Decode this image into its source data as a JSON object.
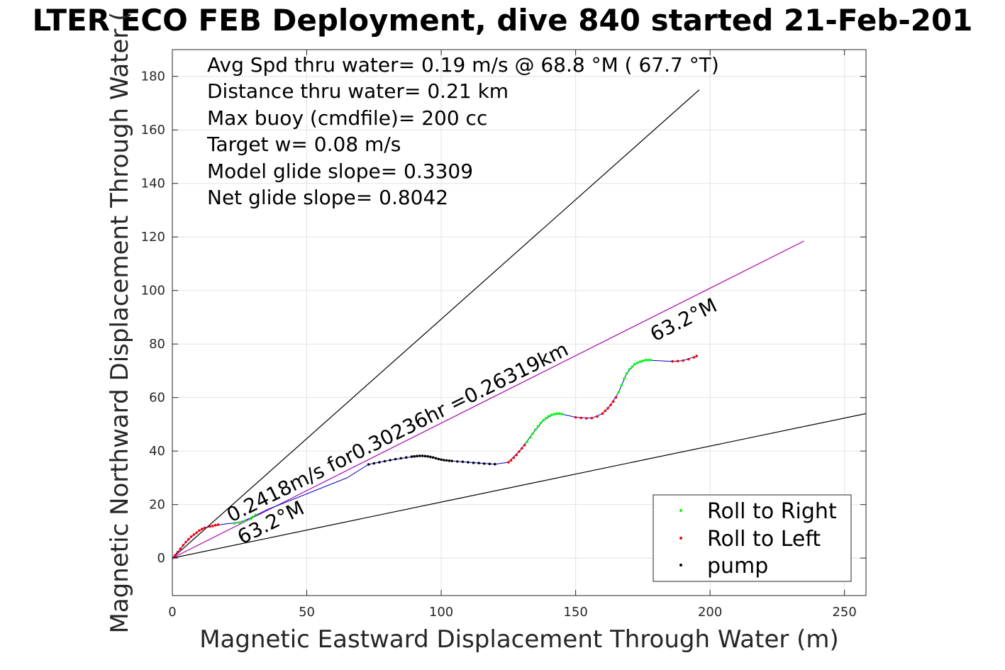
{
  "chart_data": {
    "type": "scatter",
    "title": "LTER ECO FEB Deployment, dive 840 started 21-Feb-201",
    "xlabel": "Magnetic Eastward Displacement Through Water (m)",
    "ylabel": "Magnetic Northward Displacement Through Water (",
    "xlim": [
      0,
      258
    ],
    "ylim": [
      -14,
      190
    ],
    "xticks": [
      0,
      50,
      100,
      150,
      200,
      250
    ],
    "yticks": [
      0,
      20,
      40,
      60,
      80,
      100,
      120,
      140,
      160,
      180
    ],
    "grid": true,
    "info_lines": [
      "Avg Spd thru water=  0.19 m/s @  68.8 °M ( 67.7 °T)",
      "Distance thru water=  0.21 km",
      "Max buoy (cmdfile)= 200 cc",
      "Target w= 0.08 m/s",
      "Model glide slope= 0.3309",
      "Net glide slope= 0.8042"
    ],
    "annotations": {
      "speed_label": "0.2418m/s for0.30236hr =0.26319km",
      "heading_start": "63.2°M",
      "heading_end": "63.2°M"
    },
    "legend": {
      "location": "bottom-right",
      "entries": [
        {
          "label": "Roll to Right",
          "color": "#00ff00"
        },
        {
          "label": "Roll to Left",
          "color": "#ff0000"
        },
        {
          "label": "pump",
          "color": "#000000"
        }
      ]
    },
    "reference_lines": [
      {
        "name": "steep",
        "from": [
          0,
          0
        ],
        "to": [
          196,
          175
        ],
        "color": "#000000"
      },
      {
        "name": "shallow",
        "from": [
          0,
          0
        ],
        "to": [
          258,
          54
        ],
        "color": "#000000"
      },
      {
        "name": "heading",
        "from": [
          0,
          0
        ],
        "to": [
          235,
          118.5
        ],
        "color": "#b000b0"
      }
    ],
    "track_color": "#0000cc",
    "series": [
      {
        "name": "Roll to Left",
        "color": "#ff0000",
        "points": [
          [
            0,
            0
          ],
          [
            1,
            1
          ],
          [
            2,
            2.2
          ],
          [
            3,
            3.5
          ],
          [
            4,
            4.8
          ],
          [
            5,
            6
          ],
          [
            6,
            7
          ],
          [
            7,
            8
          ],
          [
            8,
            8.8
          ],
          [
            9,
            9.5
          ],
          [
            10,
            10.3
          ],
          [
            11,
            10.9
          ],
          [
            12,
            11.3
          ],
          [
            14,
            11.8
          ],
          [
            15,
            12
          ],
          [
            16,
            12.3
          ],
          [
            17,
            12.5
          ],
          [
            125,
            35.8
          ],
          [
            126,
            36.5
          ],
          [
            127,
            37.5
          ],
          [
            128,
            38.5
          ],
          [
            129,
            39.8
          ],
          [
            130,
            41
          ],
          [
            131,
            42.2
          ],
          [
            150,
            52.6
          ],
          [
            152,
            52.4
          ],
          [
            154,
            52.2
          ],
          [
            156,
            52.3
          ],
          [
            158,
            52.9
          ],
          [
            160,
            54
          ],
          [
            161,
            55
          ],
          [
            162,
            56
          ],
          [
            163,
            57.2
          ],
          [
            164,
            58.5
          ],
          [
            165,
            60
          ],
          [
            186,
            73.5
          ],
          [
            188,
            73.6
          ],
          [
            190,
            73.8
          ],
          [
            192,
            74.3
          ],
          [
            194,
            75
          ],
          [
            195,
            75.5
          ]
        ]
      },
      {
        "name": "Roll to Right",
        "color": "#00ff00",
        "points": [
          [
            23,
            13
          ],
          [
            25,
            13.3
          ],
          [
            27,
            13.8
          ],
          [
            29,
            14.6
          ],
          [
            30,
            15.4
          ],
          [
            31,
            16.2
          ],
          [
            132,
            43.5
          ],
          [
            133,
            45
          ],
          [
            134,
            46.5
          ],
          [
            135,
            48
          ],
          [
            136,
            49.3
          ],
          [
            137,
            50.5
          ],
          [
            138,
            51.5
          ],
          [
            139,
            52.3
          ],
          [
            140,
            53
          ],
          [
            141,
            53.5
          ],
          [
            142,
            53.8
          ],
          [
            143,
            54
          ],
          [
            144,
            54
          ],
          [
            145,
            53.8
          ],
          [
            166,
            62
          ],
          [
            167,
            64.5
          ],
          [
            168,
            67
          ],
          [
            169,
            69
          ],
          [
            170,
            70.5
          ],
          [
            171,
            71.5
          ],
          [
            172,
            72.5
          ],
          [
            173,
            73
          ],
          [
            174,
            73.4
          ],
          [
            175,
            73.7
          ],
          [
            176,
            74
          ],
          [
            177,
            74
          ],
          [
            178,
            74
          ]
        ]
      },
      {
        "name": "pump",
        "color": "#000000",
        "points": [
          [
            73,
            35
          ],
          [
            75,
            35.4
          ],
          [
            77,
            35.8
          ],
          [
            79,
            36.2
          ],
          [
            81,
            36.6
          ],
          [
            83,
            37
          ],
          [
            85,
            37.3
          ],
          [
            87,
            37.6
          ],
          [
            89,
            37.9
          ],
          [
            90,
            38
          ],
          [
            91,
            38.1
          ],
          [
            92,
            38.2
          ],
          [
            93,
            38.2
          ],
          [
            94,
            38.1
          ],
          [
            95,
            38
          ],
          [
            96,
            37.8
          ],
          [
            97,
            37.6
          ],
          [
            98,
            37.3
          ],
          [
            99,
            37
          ],
          [
            100,
            36.8
          ],
          [
            101,
            36.6
          ],
          [
            102,
            36.5
          ],
          [
            103,
            36.4
          ],
          [
            104,
            36.3
          ],
          [
            106,
            36.1
          ],
          [
            108,
            36
          ],
          [
            110,
            35.8
          ],
          [
            112,
            35.6
          ],
          [
            114,
            35.5
          ],
          [
            116,
            35.3
          ],
          [
            118,
            35.2
          ],
          [
            120,
            35.1
          ]
        ]
      }
    ],
    "track_points": [
      [
        0,
        0
      ],
      [
        3,
        3.5
      ],
      [
        6,
        7
      ],
      [
        9,
        9.5
      ],
      [
        12,
        11.3
      ],
      [
        15,
        12
      ],
      [
        20,
        12.8
      ],
      [
        25,
        13.3
      ],
      [
        30,
        15.4
      ],
      [
        35,
        18
      ],
      [
        45,
        22
      ],
      [
        55,
        26
      ],
      [
        65,
        30
      ],
      [
        73,
        35
      ],
      [
        80,
        36.4
      ],
      [
        90,
        38
      ],
      [
        93,
        38.2
      ],
      [
        97,
        37.6
      ],
      [
        102,
        36.5
      ],
      [
        110,
        35.8
      ],
      [
        120,
        35.1
      ],
      [
        125,
        35.8
      ],
      [
        130,
        41
      ],
      [
        134,
        46.5
      ],
      [
        138,
        51.5
      ],
      [
        142,
        53.8
      ],
      [
        145,
        53.8
      ],
      [
        150,
        52.6
      ],
      [
        156,
        52.3
      ],
      [
        160,
        54
      ],
      [
        163,
        57.2
      ],
      [
        166,
        62
      ],
      [
        169,
        69
      ],
      [
        172,
        72.5
      ],
      [
        176,
        74
      ],
      [
        180,
        73.8
      ],
      [
        186,
        73.5
      ],
      [
        190,
        73.8
      ],
      [
        195,
        75.5
      ]
    ]
  }
}
